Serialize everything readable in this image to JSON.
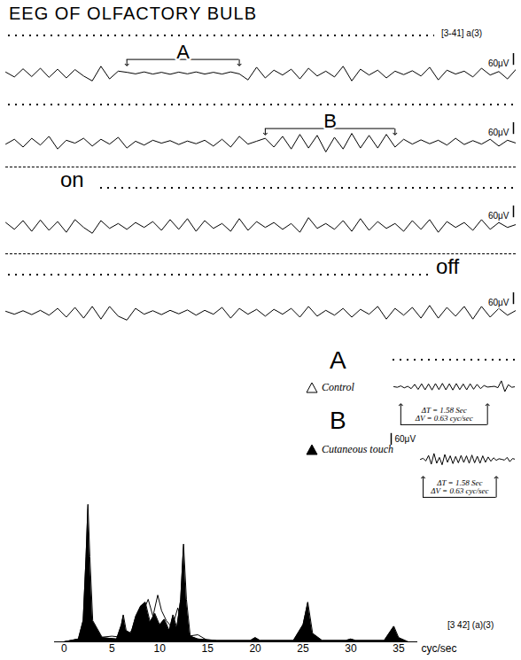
{
  "title": "EEG OF OLFACTORY BULB",
  "chart_data": [
    {
      "type": "line",
      "record": "[3-41] a(3)",
      "color": "#000000",
      "tick_labels": false,
      "xlim": [
        0,
        59
      ],
      "ylim": [
        -100,
        100
      ],
      "x": [
        0,
        1,
        2,
        3,
        4,
        5,
        6,
        7,
        8,
        9,
        10,
        11,
        12,
        13,
        14,
        15,
        16,
        17,
        18,
        19,
        20,
        21,
        22,
        23,
        24,
        25,
        26,
        27,
        28,
        29,
        30,
        31,
        32,
        33,
        34,
        35,
        36,
        37,
        38,
        39,
        40,
        41,
        42,
        43,
        44,
        45,
        46,
        47,
        48,
        49,
        50,
        51,
        52,
        53,
        54,
        55,
        56,
        57,
        58,
        59
      ],
      "values": [
        5,
        -20,
        22,
        -18,
        25,
        -22,
        20,
        -25,
        18,
        -15,
        -40,
        35,
        -30,
        10,
        4,
        -4,
        6,
        -5,
        4,
        -6,
        5,
        -4,
        6,
        -5,
        4,
        -5,
        6,
        -4,
        -35,
        30,
        -25,
        15,
        -10,
        20,
        -30,
        25,
        -15,
        10,
        -20,
        35,
        -40,
        20,
        -10,
        15,
        -25,
        10,
        -8,
        12,
        -15,
        30,
        -35,
        15,
        -5,
        10,
        -20,
        25,
        -10,
        8,
        -30,
        20
      ],
      "scale_bar": {
        "value": 60,
        "label": "60μV"
      },
      "annotations": [
        {
          "text": "A",
          "x": [
            14,
            27
          ]
        }
      ]
    },
    {
      "type": "line",
      "color": "#000000",
      "tick_labels": false,
      "xlim": [
        0,
        59
      ],
      "ylim": [
        -100,
        100
      ],
      "x": [
        0,
        1,
        2,
        3,
        4,
        5,
        6,
        7,
        8,
        9,
        10,
        11,
        12,
        13,
        14,
        15,
        16,
        17,
        18,
        19,
        20,
        21,
        22,
        23,
        24,
        25,
        26,
        27,
        28,
        29,
        30,
        31,
        32,
        33,
        34,
        35,
        36,
        37,
        38,
        39,
        40,
        41,
        42,
        43,
        44,
        45,
        46,
        47,
        48,
        49,
        50,
        51,
        52,
        53,
        54,
        55,
        56,
        57,
        58,
        59
      ],
      "values": [
        -10,
        15,
        -25,
        20,
        -15,
        30,
        -35,
        10,
        -5,
        20,
        -20,
        15,
        -10,
        25,
        -30,
        5,
        -15,
        10,
        -5,
        8,
        -12,
        6,
        -8,
        10,
        -20,
        15,
        -25,
        30,
        -10,
        5,
        20,
        -25,
        30,
        -35,
        40,
        -30,
        35,
        -50,
        25,
        -35,
        45,
        -30,
        35,
        -30,
        40,
        -25,
        15,
        -10,
        12,
        -8,
        10,
        -15,
        20,
        -12,
        8,
        -10,
        15,
        -20,
        10,
        -5
      ],
      "scale_bar": {
        "value": 60,
        "label": "60μV"
      },
      "annotations": [
        {
          "text": "B",
          "x": [
            30,
            45
          ]
        }
      ]
    },
    {
      "type": "line",
      "color": "#000000",
      "tick_labels": false,
      "event": "on",
      "xlim": [
        0,
        59
      ],
      "ylim": [
        -100,
        100
      ],
      "x": [
        0,
        1,
        2,
        3,
        4,
        5,
        6,
        7,
        8,
        9,
        10,
        11,
        12,
        13,
        14,
        15,
        16,
        17,
        18,
        19,
        20,
        21,
        22,
        23,
        24,
        25,
        26,
        27,
        28,
        29,
        30,
        31,
        32,
        33,
        34,
        35,
        36,
        37,
        38,
        39,
        40,
        41,
        42,
        43,
        44,
        45,
        46,
        47,
        48,
        49,
        50,
        51,
        52,
        53,
        54,
        55,
        56,
        57,
        58,
        59
      ],
      "values": [
        15,
        -20,
        25,
        -30,
        28,
        -25,
        20,
        -35,
        30,
        -10,
        -40,
        25,
        -15,
        10,
        -20,
        15,
        -10,
        20,
        -25,
        30,
        -20,
        35,
        -30,
        25,
        -15,
        10,
        -30,
        35,
        -25,
        20,
        -10,
        15,
        -20,
        10,
        -35,
        40,
        -15,
        10,
        -20,
        25,
        -30,
        35,
        -25,
        20,
        -15,
        10,
        -30,
        25,
        -20,
        30,
        -35,
        20,
        -10,
        15,
        -25,
        30,
        -20,
        15,
        -10,
        5
      ],
      "scale_bar": {
        "value": 60,
        "label": "60μV"
      }
    },
    {
      "type": "line",
      "color": "#000000",
      "tick_labels": false,
      "event": "off",
      "xlim": [
        0,
        59
      ],
      "ylim": [
        -100,
        100
      ],
      "x": [
        0,
        1,
        2,
        3,
        4,
        5,
        6,
        7,
        8,
        9,
        10,
        11,
        12,
        13,
        14,
        15,
        16,
        17,
        18,
        19,
        20,
        21,
        22,
        23,
        24,
        25,
        26,
        27,
        28,
        29,
        30,
        31,
        32,
        33,
        34,
        35,
        36,
        37,
        38,
        39,
        40,
        41,
        42,
        43,
        44,
        45,
        46,
        47,
        48,
        49,
        50,
        51,
        52,
        53,
        54,
        55,
        56,
        57,
        58,
        59
      ],
      "values": [
        5,
        -10,
        8,
        -12,
        10,
        -15,
        20,
        -25,
        25,
        -30,
        30,
        -35,
        30,
        -20,
        -40,
        20,
        -10,
        8,
        -12,
        10,
        -8,
        12,
        -15,
        10,
        -10,
        25,
        -30,
        20,
        -10,
        15,
        -20,
        15,
        -10,
        20,
        -25,
        30,
        -20,
        10,
        -15,
        20,
        -25,
        15,
        -10,
        30,
        -35,
        20,
        -15,
        25,
        -30,
        35,
        -30,
        25,
        -20,
        30,
        -35,
        30,
        -25,
        20,
        -15,
        10
      ],
      "scale_bar": {
        "value": 60,
        "label": "60μV"
      }
    },
    {
      "type": "line",
      "color": "#000000",
      "tick_labels": false,
      "xlim": [
        0,
        35
      ],
      "ylim": [
        -100,
        100
      ],
      "x": [
        0,
        1,
        2,
        3,
        4,
        5,
        6,
        7,
        8,
        9,
        10,
        11,
        12,
        13,
        14,
        15,
        16,
        17,
        18,
        19,
        20,
        21,
        22,
        23,
        24,
        25,
        26,
        27,
        28,
        29,
        30,
        31,
        32,
        33,
        34,
        35
      ],
      "values": [
        0,
        -3,
        4,
        -6,
        2,
        -10,
        12,
        -14,
        15,
        -16,
        14,
        -17,
        16,
        -15,
        17,
        -16,
        15,
        -17,
        16,
        -15,
        14,
        -16,
        15,
        -13,
        12,
        -10,
        6,
        -2,
        0,
        2,
        -5,
        30,
        -25,
        10,
        -3,
        0
      ],
      "interval": {
        "x": [
          2,
          27
        ],
        "texts": [
          "ΔT = 1.58 Sec",
          "ΔV = 0.63 cyc/sec"
        ]
      }
    },
    {
      "type": "line",
      "color": "#000000",
      "tick_labels": false,
      "xlim": [
        0,
        35
      ],
      "ylim": [
        -100,
        100
      ],
      "x": [
        0,
        1,
        2,
        3,
        4,
        5,
        6,
        7,
        8,
        9,
        10,
        11,
        12,
        13,
        14,
        15,
        16,
        17,
        18,
        19,
        20,
        21,
        22,
        23,
        24,
        25,
        26,
        27,
        28,
        29,
        30,
        31,
        32,
        33,
        34,
        35
      ],
      "values": [
        0,
        5,
        -8,
        20,
        -25,
        30,
        -20,
        10,
        -28,
        25,
        -15,
        18,
        -22,
        15,
        -18,
        20,
        -16,
        18,
        -20,
        22,
        -18,
        16,
        -20,
        18,
        -15,
        12,
        -10,
        8,
        -5,
        3,
        0,
        -4,
        10,
        -12,
        4,
        0
      ],
      "scale_bar": {
        "value": 60,
        "label": "60μV"
      },
      "interval": {
        "x": [
          1,
          28
        ],
        "texts": [
          "ΔT = 1.58 Sec",
          "ΔV = 0.63 cyc/sec"
        ]
      }
    },
    {
      "type": "area",
      "record": "[3 42] (a)(3)",
      "xlabel": "cyc/sec",
      "tick_labels": "x",
      "legend": "top-right",
      "xlim": [
        -1,
        37
      ],
      "xticks": [
        0,
        5,
        10,
        15,
        20,
        25,
        30,
        35
      ],
      "ylim": [
        0,
        100
      ],
      "series": [
        {
          "name": "Control",
          "label": "A",
          "color": "#ffffff",
          "marker": "triangle",
          "x": [
            0,
            2.5,
            3.0,
            3.5,
            5.0,
            6.5,
            7.5,
            8.2,
            8.8,
            9.3,
            9.8,
            10.2,
            10.7,
            11.3,
            11.9,
            12.4,
            13.0,
            14.0,
            15.0,
            17.0
          ],
          "values": [
            0,
            3,
            8,
            3,
            4,
            3,
            12,
            20,
            30,
            18,
            33,
            22,
            15,
            10,
            24,
            12,
            4,
            5,
            1,
            0
          ]
        },
        {
          "name": "Cutaneous touch",
          "label": "B",
          "color": "#000000",
          "marker": "triangle",
          "x": [
            0,
            1.5,
            2.0,
            2.3,
            2.5,
            2.7,
            3.0,
            4.0,
            5.5,
            6.0,
            6.2,
            6.5,
            7.0,
            7.5,
            8.0,
            8.5,
            9.0,
            9.5,
            10.0,
            10.5,
            11.0,
            11.4,
            11.8,
            12.2,
            12.5,
            12.8,
            13.2,
            14.0,
            16.0,
            19.5,
            20.0,
            20.5,
            24.0,
            25.0,
            25.5,
            26.0,
            27.0,
            29.5,
            30.0,
            30.5,
            33.5,
            34.0,
            34.5,
            35.0,
            36.0
          ],
          "values": [
            0,
            2,
            15,
            60,
            97,
            60,
            15,
            3,
            2,
            12,
            19,
            8,
            6,
            18,
            25,
            28,
            14,
            20,
            12,
            16,
            8,
            19,
            10,
            30,
            69,
            30,
            4,
            2,
            1,
            1,
            3,
            1,
            1,
            12,
            28,
            6,
            1,
            1,
            2,
            1,
            1,
            6,
            11,
            3,
            0
          ]
        }
      ]
    }
  ]
}
